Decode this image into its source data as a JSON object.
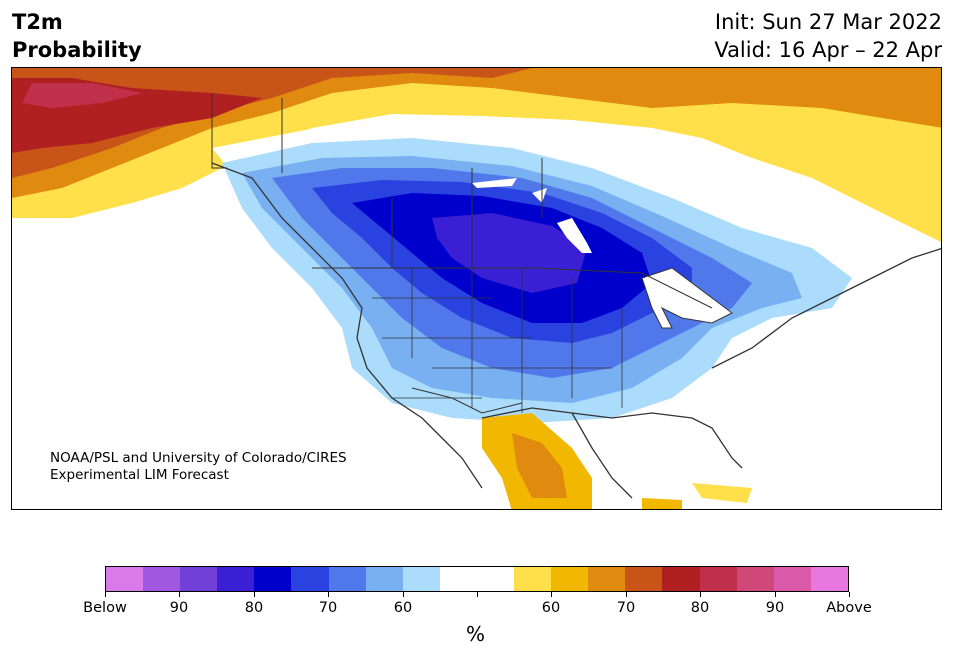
{
  "title": {
    "line1": "T2m",
    "line2": "Probability"
  },
  "dates": {
    "init": "Init: Sun 27 Mar 2022",
    "valid": "Valid: 16 Apr – 22 Apr"
  },
  "credit": {
    "line1": "NOAA/PSL and University of Colorado/CIRES",
    "line2": "Experimental LIM Forecast"
  },
  "colorbar": {
    "colors": [
      "#d87ae8",
      "#a058e0",
      "#7040d8",
      "#3a1fd4",
      "#0000cc",
      "#2a42e0",
      "#5078ea",
      "#78b0f2",
      "#acdcfc",
      "#ffffff",
      "#ffffff",
      "#ffe04a",
      "#f2b800",
      "#e08a10",
      "#c85418",
      "#b02020",
      "#c0304a",
      "#d04878",
      "#d85aa8",
      "#e878e0"
    ],
    "tick_labels": [
      "Below",
      "90",
      "80",
      "70",
      "60",
      "",
      "60",
      "70",
      "80",
      "90",
      "Above"
    ],
    "units": "%"
  }
}
